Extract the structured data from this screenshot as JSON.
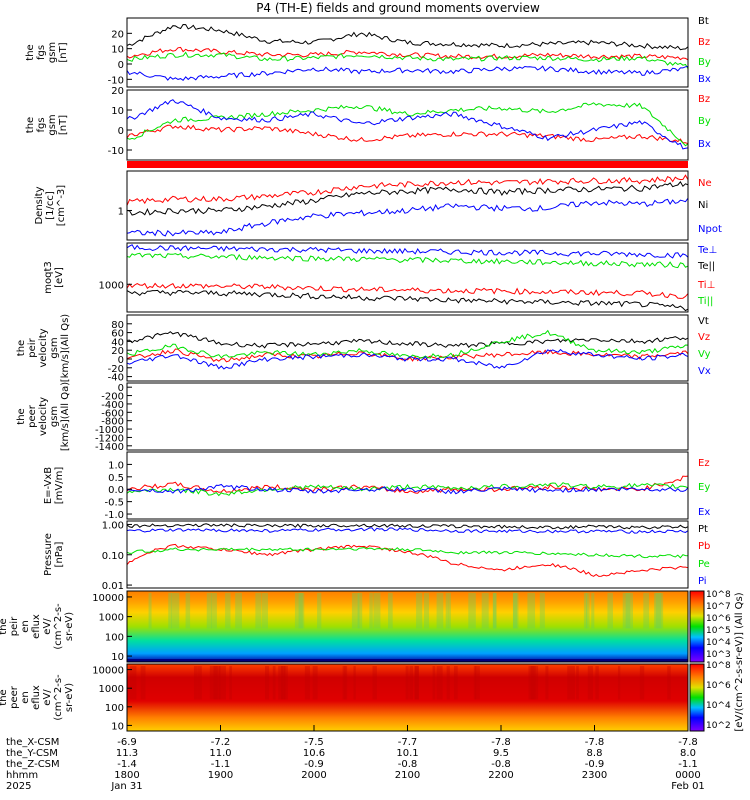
{
  "title": "P4 (TH-E) fields and ground moments overview",
  "colors": {
    "black": "#000000",
    "red": "#ff0000",
    "green": "#00e000",
    "blue": "#0000ff"
  },
  "colorbar": {
    "label": "[eV/(cm^2-s-sr-eV)] (All Qs)",
    "ticks_top": [
      "10^8",
      "10^7",
      "10^6",
      "10^5",
      "10^4",
      "10^3"
    ],
    "ticks_bottom": [
      "10^8",
      "10^6",
      "10^4",
      "10^2"
    ]
  },
  "x_axis": {
    "rows": [
      {
        "label": "the_X-CSM",
        "values": [
          "-6.9",
          "-7.2",
          "-7.5",
          "-7.7",
          "-7.8",
          "-7.8",
          "-7.8"
        ]
      },
      {
        "label": "the_Y-CSM",
        "values": [
          "11.3",
          "11.0",
          "10.6",
          "10.1",
          "9.5",
          "8.8",
          "8.0"
        ]
      },
      {
        "label": "the_Z-CSM",
        "values": [
          "-1.4",
          "-1.1",
          "-0.9",
          "-0.8",
          "-0.8",
          "-0.9",
          "-1.1"
        ]
      },
      {
        "label": "hhmm",
        "values": [
          "1800",
          "1900",
          "2000",
          "2100",
          "2200",
          "2300",
          "0000"
        ]
      },
      {
        "label": "2025",
        "values": [
          "Jan 31",
          "",
          "",
          "",
          "",
          "",
          "Feb 01"
        ]
      }
    ]
  },
  "chart_data": [
    {
      "type": "line",
      "ylabel": "the\nfgs\ngsm\n[nT]",
      "ylim": [
        -15,
        30
      ],
      "yticks": [
        "20",
        "10",
        "0",
        "-10"
      ],
      "series": [
        {
          "name": "Bt",
          "color": "black",
          "values": [
            12,
            25,
            22,
            15,
            14,
            20,
            14,
            13,
            12,
            13,
            14,
            12,
            10
          ]
        },
        {
          "name": "Bz",
          "color": "red",
          "values": [
            5,
            10,
            8,
            6,
            6,
            8,
            6,
            5,
            5,
            6,
            5,
            5,
            4
          ]
        },
        {
          "name": "By",
          "color": "green",
          "values": [
            3,
            6,
            6,
            3,
            4,
            6,
            4,
            3,
            4,
            4,
            3,
            4,
            -2
          ]
        },
        {
          "name": "Bx",
          "color": "blue",
          "values": [
            -5,
            -10,
            -8,
            -6,
            -3,
            -5,
            -4,
            -5,
            -3,
            -3,
            -5,
            -6,
            -3
          ]
        }
      ]
    },
    {
      "type": "line",
      "ylabel": "the\nfgs\ngsm\n[nT]",
      "ylim": [
        -15,
        20
      ],
      "yticks": [
        "20",
        "10",
        "0",
        "-10"
      ],
      "series": [
        {
          "name": "Bz",
          "color": "red",
          "values": [
            -3,
            2,
            0,
            1,
            -2,
            -5,
            -3,
            -2,
            -2,
            -3,
            -5,
            -3,
            -6
          ]
        },
        {
          "name": "By",
          "color": "green",
          "values": [
            -5,
            5,
            6,
            8,
            10,
            12,
            8,
            10,
            11,
            9,
            13,
            12,
            -8
          ]
        },
        {
          "name": "Bx",
          "color": "blue",
          "values": [
            5,
            15,
            6,
            5,
            8,
            3,
            6,
            8,
            2,
            -4,
            0,
            4,
            -10
          ]
        }
      ]
    },
    {
      "type": "line",
      "ylabel": "Density\n[1/cc]\n[cm^-3]",
      "ylim": [
        0.3,
        5
      ],
      "yticks": [
        "1"
      ],
      "log": true,
      "series": [
        {
          "name": "Ne",
          "color": "red",
          "values": [
            1.4,
            1.6,
            1.6,
            1.8,
            2.1,
            2.7,
            2.9,
            3.2,
            3.1,
            3.3,
            3.4,
            3.4,
            3.8
          ]
        },
        {
          "name": "Ni",
          "color": "black",
          "values": [
            0.9,
            1.0,
            1.0,
            1.2,
            1.5,
            2.0,
            2.2,
            2.4,
            2.1,
            2.3,
            2.4,
            2.5,
            3.0
          ]
        },
        {
          "name": "Npot",
          "color": "blue",
          "values": [
            0.4,
            0.4,
            0.4,
            0.6,
            0.8,
            0.9,
            1.0,
            1.2,
            1.1,
            1.1,
            1.4,
            1.3,
            1.5
          ]
        }
      ]
    },
    {
      "type": "line",
      "ylabel": "moqt3\n[eV]",
      "ylim": [
        300,
        6000
      ],
      "yticks": [
        "1000"
      ],
      "log": true,
      "series": [
        {
          "name": "Te⊥",
          "color": "blue",
          "values": [
            5000,
            4800,
            4700,
            4600,
            4500,
            4300,
            4200,
            4100,
            4000,
            3900,
            3800,
            3700,
            3500
          ]
        },
        {
          "name": "Te||",
          "color": "black",
          "values": [
            700,
            700,
            680,
            650,
            600,
            560,
            540,
            500,
            480,
            460,
            440,
            420,
            350
          ]
        },
        {
          "name": "Ti⊥",
          "color": "red",
          "values": [
            950,
            950,
            920,
            900,
            850,
            800,
            780,
            760,
            750,
            720,
            700,
            680,
            600
          ]
        },
        {
          "name": "Ti||",
          "color": "green",
          "values": [
            3500,
            3400,
            3300,
            3200,
            3100,
            3000,
            2900,
            2800,
            2700,
            2600,
            2500,
            2400,
            2300
          ]
        }
      ]
    },
    {
      "type": "line",
      "ylabel": "the\npeir\nvelocity\ngsm\n[km/s](All Qs)",
      "ylim": [
        -50,
        100
      ],
      "yticks": [
        "80",
        "60",
        "40",
        "20",
        "0",
        "-20",
        "-40"
      ],
      "series": [
        {
          "name": "Vt",
          "color": "black",
          "values": [
            40,
            60,
            35,
            30,
            35,
            40,
            35,
            30,
            35,
            40,
            45,
            40,
            50
          ]
        },
        {
          "name": "Vz",
          "color": "red",
          "values": [
            0,
            20,
            -5,
            10,
            5,
            15,
            0,
            5,
            10,
            15,
            10,
            5,
            15
          ]
        },
        {
          "name": "Vy",
          "color": "green",
          "values": [
            10,
            30,
            5,
            15,
            10,
            20,
            5,
            10,
            40,
            60,
            20,
            15,
            30
          ]
        },
        {
          "name": "Vx",
          "color": "blue",
          "values": [
            -10,
            10,
            -20,
            0,
            5,
            10,
            0,
            0,
            -20,
            20,
            10,
            0,
            10
          ]
        }
      ]
    },
    {
      "type": "line",
      "ylabel": "the\npeer\nvelocity\ngsm\n[km/s](All Qa)",
      "ylim": [
        -1500,
        100
      ],
      "yticks": [
        "0",
        "-200",
        "-400",
        "-600",
        "-800",
        "-1000",
        "-1200",
        "-1400"
      ],
      "series": [
        {
          "name": "Vt",
          "color": "black",
          "values": []
        },
        {
          "name": "Vz",
          "color": "red",
          "values": []
        },
        {
          "name": "Vy",
          "color": "green",
          "values": []
        },
        {
          "name": "Vx",
          "color": "blue",
          "values": []
        }
      ]
    },
    {
      "type": "line",
      "ylabel": "E=-VxB\n[mV/m]",
      "ylim": [
        -1.2,
        1.5
      ],
      "yticks": [
        "1.0",
        "0.5",
        "0.0",
        "-0.5",
        "-1.0"
      ],
      "series": [
        {
          "name": "Ez",
          "color": "red",
          "values": [
            0,
            0.2,
            -0.1,
            0.1,
            0,
            0.1,
            -0.1,
            0,
            0,
            0.1,
            0,
            0,
            0.5
          ]
        },
        {
          "name": "Ey",
          "color": "green",
          "values": [
            -0.1,
            0,
            -0.2,
            0,
            0.1,
            0,
            0.1,
            0.05,
            0.1,
            0.2,
            0.1,
            0.15,
            0.1
          ]
        },
        {
          "name": "Ex",
          "color": "blue",
          "values": [
            0,
            -0.1,
            0.1,
            0,
            -0.1,
            0,
            0,
            -0.1,
            0,
            -0.05,
            0,
            0,
            0
          ]
        }
      ]
    },
    {
      "type": "line",
      "ylabel": "Pressure\n[nPa]",
      "ylim": [
        0.008,
        1.3
      ],
      "yticks": [
        "1.00",
        "0.10",
        "0.01"
      ],
      "log": true,
      "series": [
        {
          "name": "Pt",
          "color": "black",
          "values": [
            0.9,
            0.95,
            0.95,
            0.9,
            0.92,
            0.95,
            0.9,
            0.88,
            0.85,
            0.8,
            0.85,
            0.8,
            0.85
          ]
        },
        {
          "name": "Pb",
          "color": "red",
          "values": [
            0.05,
            0.2,
            0.15,
            0.1,
            0.15,
            0.2,
            0.12,
            0.05,
            0.03,
            0.05,
            0.02,
            0.03,
            0.04
          ]
        },
        {
          "name": "Pe",
          "color": "green",
          "values": [
            0.12,
            0.15,
            0.15,
            0.15,
            0.15,
            0.16,
            0.15,
            0.12,
            0.12,
            0.11,
            0.1,
            0.09,
            0.09
          ]
        },
        {
          "name": "Pi",
          "color": "blue",
          "values": [
            0.6,
            0.65,
            0.65,
            0.62,
            0.65,
            0.7,
            0.68,
            0.62,
            0.6,
            0.6,
            0.6,
            0.58,
            0.6
          ]
        }
      ]
    },
    {
      "type": "heatmap",
      "ylabel": "the\npeir\nen\neflux\neV/\n(cm^2-s-\nsr-eV)",
      "ylim": [
        5,
        20000
      ],
      "yticks": [
        "10000",
        "1000",
        "100",
        "10"
      ],
      "log": true
    },
    {
      "type": "heatmap",
      "ylabel": "the\npeer\nen\neflux\neV/\n(cm^2-s-\nsr-eV)",
      "ylim": [
        5,
        20000
      ],
      "yticks": [
        "10000",
        "1000",
        "100",
        "10"
      ],
      "log": true
    }
  ]
}
